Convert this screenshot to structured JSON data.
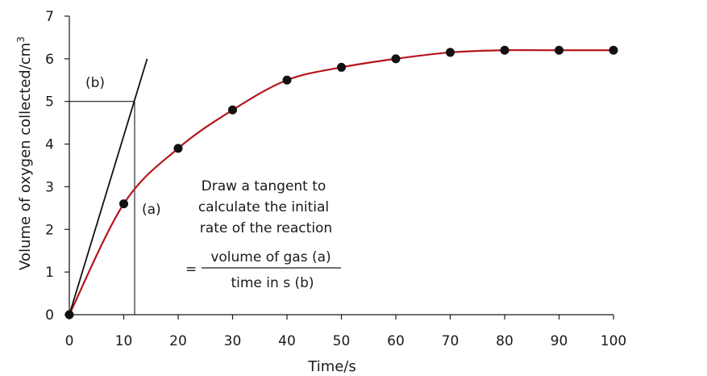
{
  "chart_data": {
    "type": "scatter",
    "xlabel": "Time/s",
    "ylabel": "Volume of oxygen collected/cm",
    "ylabel_superscript": "3",
    "xlim": [
      0,
      100
    ],
    "ylim": [
      0,
      7
    ],
    "x_ticks": [
      0,
      10,
      20,
      30,
      40,
      50,
      60,
      70,
      80,
      90,
      100
    ],
    "y_ticks": [
      0,
      1,
      2,
      3,
      4,
      5,
      6,
      7
    ],
    "grid": false,
    "series": [
      {
        "x": [
          0,
          10,
          20,
          30,
          40,
          50,
          60,
          70,
          80,
          90,
          100
        ],
        "y": [
          0,
          2.6,
          3.9,
          4.8,
          5.5,
          5.8,
          6.0,
          6.15,
          6.2,
          6.2,
          6.2
        ],
        "color": "#b5161c",
        "marker_color": "#111111"
      }
    ],
    "tangent": {
      "x": [
        0,
        14.3
      ],
      "y": [
        0,
        6.0
      ],
      "color": "#111111"
    },
    "construction": {
      "x": 12,
      "y": 5
    },
    "annotations": {
      "label_b": "(b)",
      "label_a": "(a)",
      "note_lines": [
        "Draw a tangent to",
        "calculate the initial",
        "rate of the reaction"
      ],
      "equals": "=",
      "numerator": "volume of gas (a)",
      "denominator": "time in s (b)"
    }
  }
}
